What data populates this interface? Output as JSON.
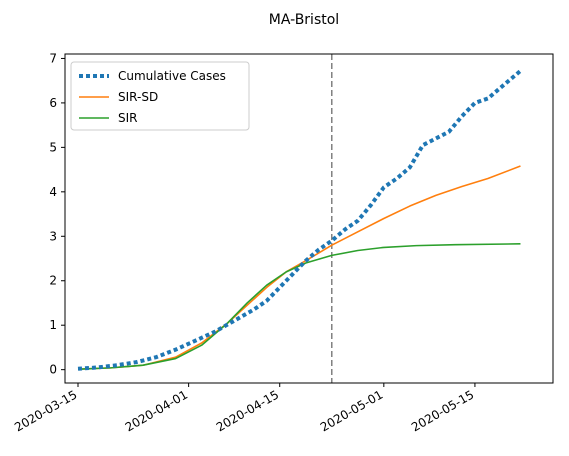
{
  "chart_data": {
    "type": "line",
    "title": "MA-Bristol",
    "xlabel": "",
    "ylabel": "",
    "x_axis_type": "date",
    "xlim": [
      "2020-03-13",
      "2020-05-27"
    ],
    "ylim": [
      -0.3,
      7.1
    ],
    "x_ticks": [
      "2020-03-15",
      "2020-04-01",
      "2020-04-15",
      "2020-05-01",
      "2020-05-15"
    ],
    "y_ticks": [
      0,
      1,
      2,
      3,
      4,
      5,
      6,
      7
    ],
    "grid": false,
    "legend_position": "top-left",
    "vertical_line": {
      "x": "2020-04-23",
      "style": "dashed",
      "color": "#808080"
    },
    "series": [
      {
        "name": "Cumulative Cases",
        "style": "dotted",
        "color": "#1f77b4",
        "points": [
          [
            "2020-03-15",
            0.02
          ],
          [
            "2020-03-18",
            0.05
          ],
          [
            "2020-03-21",
            0.1
          ],
          [
            "2020-03-24",
            0.17
          ],
          [
            "2020-03-27",
            0.28
          ],
          [
            "2020-03-30",
            0.45
          ],
          [
            "2020-04-02",
            0.65
          ],
          [
            "2020-04-05",
            0.85
          ],
          [
            "2020-04-08",
            1.1
          ],
          [
            "2020-04-11",
            1.35
          ],
          [
            "2020-04-13",
            1.55
          ],
          [
            "2020-04-15",
            1.85
          ],
          [
            "2020-04-17",
            2.15
          ],
          [
            "2020-04-19",
            2.45
          ],
          [
            "2020-04-21",
            2.7
          ],
          [
            "2020-04-23",
            2.9
          ],
          [
            "2020-04-25",
            3.15
          ],
          [
            "2020-04-27",
            3.35
          ],
          [
            "2020-04-29",
            3.7
          ],
          [
            "2020-05-01",
            4.1
          ],
          [
            "2020-05-03",
            4.3
          ],
          [
            "2020-05-05",
            4.55
          ],
          [
            "2020-05-07",
            5.05
          ],
          [
            "2020-05-09",
            5.2
          ],
          [
            "2020-05-11",
            5.35
          ],
          [
            "2020-05-13",
            5.7
          ],
          [
            "2020-05-15",
            6.0
          ],
          [
            "2020-05-17",
            6.1
          ],
          [
            "2020-05-19",
            6.35
          ],
          [
            "2020-05-22",
            6.72
          ]
        ]
      },
      {
        "name": "SIR-SD",
        "style": "solid",
        "color": "#ff7f0e",
        "points": [
          [
            "2020-03-15",
            0.01
          ],
          [
            "2020-03-20",
            0.04
          ],
          [
            "2020-03-25",
            0.1
          ],
          [
            "2020-03-30",
            0.28
          ],
          [
            "2020-04-03",
            0.6
          ],
          [
            "2020-04-07",
            1.05
          ],
          [
            "2020-04-10",
            1.45
          ],
          [
            "2020-04-13",
            1.85
          ],
          [
            "2020-04-16",
            2.2
          ],
          [
            "2020-04-19",
            2.45
          ],
          [
            "2020-04-23",
            2.8
          ],
          [
            "2020-04-27",
            3.1
          ],
          [
            "2020-05-01",
            3.4
          ],
          [
            "2020-05-05",
            3.68
          ],
          [
            "2020-05-09",
            3.92
          ],
          [
            "2020-05-13",
            4.12
          ],
          [
            "2020-05-17",
            4.3
          ],
          [
            "2020-05-22",
            4.58
          ]
        ]
      },
      {
        "name": "SIR",
        "style": "solid",
        "color": "#2ca02c",
        "points": [
          [
            "2020-03-15",
            0.01
          ],
          [
            "2020-03-20",
            0.04
          ],
          [
            "2020-03-25",
            0.1
          ],
          [
            "2020-03-30",
            0.25
          ],
          [
            "2020-04-03",
            0.55
          ],
          [
            "2020-04-07",
            1.05
          ],
          [
            "2020-04-10",
            1.5
          ],
          [
            "2020-04-13",
            1.9
          ],
          [
            "2020-04-16",
            2.2
          ],
          [
            "2020-04-19",
            2.4
          ],
          [
            "2020-04-23",
            2.57
          ],
          [
            "2020-04-27",
            2.68
          ],
          [
            "2020-05-01",
            2.75
          ],
          [
            "2020-05-06",
            2.79
          ],
          [
            "2020-05-12",
            2.81
          ],
          [
            "2020-05-22",
            2.83
          ]
        ]
      }
    ]
  }
}
